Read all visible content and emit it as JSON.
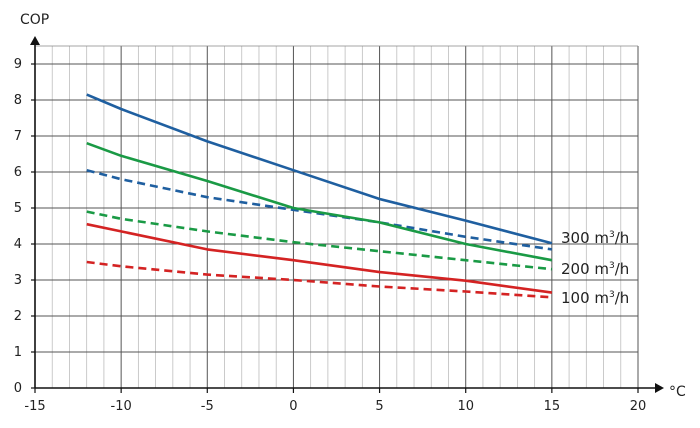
{
  "chart_data": {
    "type": "line",
    "ylabel": "COP",
    "xlabel": "°C",
    "xlim": [
      -15,
      20
    ],
    "ylim": [
      0,
      9
    ],
    "x_major_ticks": [
      "-15",
      "-10",
      "-5",
      "0",
      "5",
      "10",
      "15",
      "20"
    ],
    "y_major_ticks": [
      "0",
      "1",
      "2",
      "3",
      "4",
      "5",
      "6",
      "7",
      "8",
      "9"
    ],
    "grid": "on (major and 1 °C minor vertical lines)",
    "legend": "inline labels at right end of curves",
    "series_labels": [
      {
        "text": "300 m",
        "sup": "3",
        "unit": "/h"
      },
      {
        "text": "200 m",
        "sup": "3",
        "unit": "/h"
      },
      {
        "text": "100 m",
        "sup": "3",
        "unit": "/h"
      }
    ],
    "series": [
      {
        "group": "300",
        "style": "solid",
        "color": "#1f5fa0",
        "points": [
          [
            -12,
            8.15
          ],
          [
            -10,
            7.75
          ],
          [
            -5,
            6.85
          ],
          [
            0,
            6.05
          ],
          [
            5,
            5.25
          ],
          [
            10,
            4.65
          ],
          [
            15,
            4.02
          ]
        ]
      },
      {
        "group": "300",
        "style": "dashed",
        "color": "#1f5fa0",
        "points": [
          [
            -12,
            6.05
          ],
          [
            -10,
            5.8
          ],
          [
            -5,
            5.3
          ],
          [
            0,
            4.95
          ],
          [
            5,
            4.6
          ],
          [
            10,
            4.2
          ],
          [
            15,
            3.85
          ]
        ]
      },
      {
        "group": "200",
        "style": "solid",
        "color": "#1a9a45",
        "points": [
          [
            -12,
            6.8
          ],
          [
            -10,
            6.45
          ],
          [
            -5,
            5.75
          ],
          [
            0,
            5.0
          ],
          [
            5,
            4.6
          ],
          [
            10,
            4.0
          ],
          [
            15,
            3.55
          ]
        ]
      },
      {
        "group": "200",
        "style": "dashed",
        "color": "#1a9a45",
        "points": [
          [
            -12,
            4.9
          ],
          [
            -10,
            4.7
          ],
          [
            -5,
            4.35
          ],
          [
            0,
            4.05
          ],
          [
            5,
            3.8
          ],
          [
            10,
            3.55
          ],
          [
            15,
            3.3
          ]
        ]
      },
      {
        "group": "100",
        "style": "solid",
        "color": "#d42323",
        "points": [
          [
            -12,
            4.55
          ],
          [
            -10,
            4.35
          ],
          [
            -5,
            3.85
          ],
          [
            0,
            3.55
          ],
          [
            5,
            3.22
          ],
          [
            10,
            2.98
          ],
          [
            15,
            2.65
          ]
        ]
      },
      {
        "group": "100",
        "style": "dashed",
        "color": "#d42323",
        "points": [
          [
            -12,
            3.5
          ],
          [
            -10,
            3.38
          ],
          [
            -5,
            3.15
          ],
          [
            0,
            3.0
          ],
          [
            5,
            2.82
          ],
          [
            10,
            2.68
          ],
          [
            15,
            2.52
          ]
        ]
      }
    ]
  }
}
